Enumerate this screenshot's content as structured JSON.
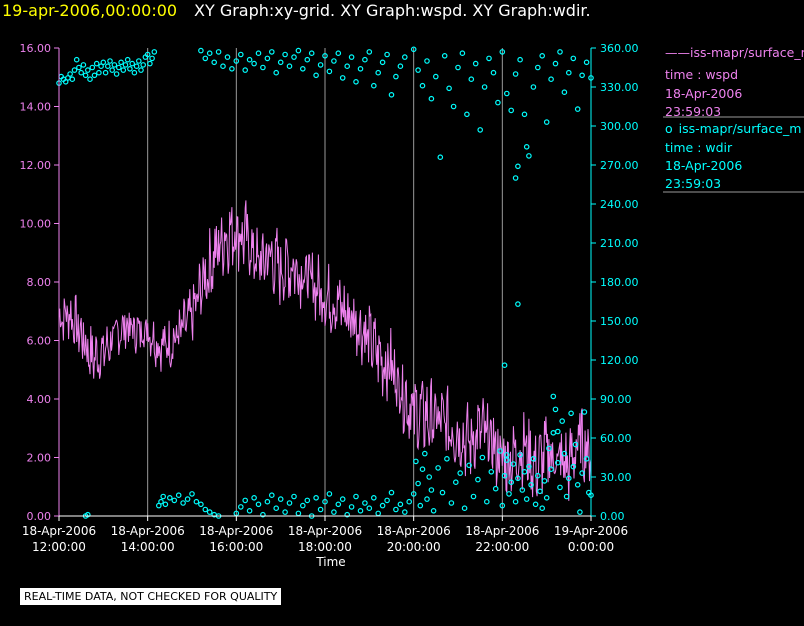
{
  "header": {
    "time": "19-apr-2006,00:00:00",
    "titles": "XY Graph:xy-grid.  XY Graph:wspd.  XY Graph:wdir."
  },
  "notice": "REAL-TIME DATA, NOT CHECKED FOR QUALITY",
  "legend": {
    "wspd": {
      "symbol": "——",
      "name": "iss-mapr/surface_m",
      "field": "time : wspd",
      "date": "18-Apr-2006",
      "time": "23:59:03"
    },
    "wdir": {
      "symbol": "o",
      "name": "iss-mapr/surface_m",
      "field": "time : wdir",
      "date": "18-Apr-2006",
      "time": "23:59:03"
    }
  },
  "colors": {
    "wspd": "#ee82ee",
    "wdir": "#00ffff",
    "grid": "#9a9a9a",
    "axis": "#ffffff",
    "title_time": "#ffff00"
  },
  "chart_data": {
    "type": "line",
    "xlabel": "Time",
    "x_tick_labels": [
      [
        "18-Apr-2006",
        "12:00:00"
      ],
      [
        "18-Apr-2006",
        "14:00:00"
      ],
      [
        "18-Apr-2006",
        "16:00:00"
      ],
      [
        "18-Apr-2006",
        "18:00:00"
      ],
      [
        "18-Apr-2006",
        "20:00:00"
      ],
      [
        "18-Apr-2006",
        "22:00:00"
      ],
      [
        "19-Apr-2006",
        "0:00:00"
      ]
    ],
    "x_tick_hours": [
      12,
      14,
      16,
      18,
      20,
      22,
      24
    ],
    "xlim_hours": [
      12,
      24
    ],
    "grid": true,
    "left_axis": {
      "ylim": [
        0,
        16
      ],
      "ticks": [
        "0.00",
        "2.00",
        "4.00",
        "6.00",
        "8.00",
        "10.00",
        "12.00",
        "14.00",
        "16.00"
      ]
    },
    "right_axis": {
      "ylim": [
        0,
        360
      ],
      "ticks": [
        "0.00",
        "30.00",
        "60.00",
        "90.00",
        "120.00",
        "150.00",
        "180.00",
        "210.00",
        "240.00",
        "270.00",
        "300.00",
        "330.00",
        "360.00"
      ]
    },
    "series": [
      {
        "key": "wspd",
        "axis": "left",
        "style": "line",
        "hours": [
          12.0,
          12.25,
          12.5,
          12.75,
          13.0,
          13.25,
          13.5,
          13.75,
          14.0,
          14.25,
          14.5,
          14.75,
          15.0,
          15.25,
          15.5,
          15.75,
          16.0,
          16.25,
          16.5,
          16.75,
          17.0,
          17.25,
          17.5,
          17.75,
          18.0,
          18.25,
          18.5,
          18.75,
          19.0,
          19.25,
          19.5,
          19.75,
          20.0,
          20.25,
          20.5,
          20.75,
          21.0,
          21.25,
          21.5,
          21.75,
          22.0,
          22.25,
          22.5,
          22.75,
          23.0,
          23.25,
          23.5,
          23.75,
          24.0
        ],
        "values": [
          6.8,
          6.9,
          6.2,
          5.4,
          5.6,
          6.1,
          6.5,
          6.3,
          6.4,
          5.8,
          5.9,
          6.3,
          6.8,
          8.0,
          8.9,
          9.6,
          9.8,
          9.4,
          8.6,
          8.9,
          8.4,
          8.6,
          8.3,
          7.9,
          7.5,
          7.3,
          6.9,
          6.6,
          6.0,
          5.4,
          5.1,
          4.3,
          3.5,
          3.4,
          3.3,
          3.1,
          2.9,
          2.5,
          2.9,
          2.5,
          1.9,
          2.0,
          2.4,
          1.6,
          2.2,
          1.9,
          1.7,
          2.6,
          2.1
        ],
        "amplitude": [
          0.7,
          0.7,
          0.8,
          0.8,
          0.7,
          0.6,
          0.6,
          0.6,
          0.6,
          0.6,
          0.7,
          0.7,
          0.8,
          0.9,
          1.0,
          1.0,
          1.0,
          1.0,
          1.0,
          1.0,
          1.0,
          1.0,
          0.9,
          0.9,
          0.9,
          0.9,
          0.9,
          0.9,
          0.9,
          1.0,
          1.0,
          1.0,
          1.1,
          1.1,
          1.0,
          1.0,
          1.0,
          1.0,
          1.0,
          1.0,
          1.0,
          1.0,
          1.0,
          1.0,
          1.0,
          1.0,
          1.0,
          1.0,
          0.8
        ]
      },
      {
        "key": "wdir",
        "axis": "right",
        "style": "scatter",
        "points": [
          [
            12.0,
            333
          ],
          [
            12.05,
            338
          ],
          [
            12.1,
            336
          ],
          [
            12.15,
            334
          ],
          [
            12.2,
            337
          ],
          [
            12.25,
            340
          ],
          [
            12.3,
            336
          ],
          [
            12.35,
            343
          ],
          [
            12.4,
            351
          ],
          [
            12.45,
            345
          ],
          [
            12.5,
            341
          ],
          [
            12.55,
            347
          ],
          [
            12.6,
            339
          ],
          [
            12.65,
            343
          ],
          [
            12.7,
            336
          ],
          [
            12.75,
            345
          ],
          [
            12.8,
            339
          ],
          [
            12.85,
            348
          ],
          [
            12.9,
            341
          ],
          [
            12.95,
            346
          ],
          [
            13.0,
            349
          ],
          [
            13.05,
            341
          ],
          [
            13.1,
            346
          ],
          [
            13.15,
            350
          ],
          [
            13.2,
            343
          ],
          [
            13.25,
            347
          ],
          [
            13.3,
            340
          ],
          [
            13.35,
            345
          ],
          [
            13.4,
            349
          ],
          [
            13.45,
            343
          ],
          [
            13.5,
            347
          ],
          [
            13.55,
            351
          ],
          [
            13.6,
            344
          ],
          [
            13.65,
            348
          ],
          [
            13.7,
            341
          ],
          [
            13.75,
            346
          ],
          [
            13.8,
            350
          ],
          [
            13.85,
            343
          ],
          [
            13.9,
            347
          ],
          [
            13.95,
            353
          ],
          [
            14.0,
            355
          ],
          [
            14.05,
            348
          ],
          [
            14.1,
            352
          ],
          [
            14.15,
            357
          ],
          [
            15.2,
            358
          ],
          [
            15.3,
            352
          ],
          [
            15.4,
            356
          ],
          [
            15.5,
            349
          ],
          [
            15.6,
            357
          ],
          [
            15.7,
            346
          ],
          [
            15.8,
            353
          ],
          [
            15.9,
            344
          ],
          [
            16.0,
            350
          ],
          [
            16.1,
            355
          ],
          [
            16.2,
            343
          ],
          [
            16.3,
            351
          ],
          [
            16.4,
            348
          ],
          [
            16.5,
            356
          ],
          [
            16.6,
            345
          ],
          [
            16.7,
            352
          ],
          [
            16.8,
            357
          ],
          [
            16.9,
            341
          ],
          [
            17.0,
            349
          ],
          [
            17.1,
            355
          ],
          [
            17.2,
            346
          ],
          [
            17.3,
            353
          ],
          [
            17.4,
            358
          ],
          [
            17.5,
            344
          ],
          [
            17.6,
            351
          ],
          [
            17.7,
            356
          ],
          [
            17.8,
            339
          ],
          [
            17.9,
            347
          ],
          [
            18.0,
            354
          ],
          [
            18.1,
            342
          ],
          [
            18.2,
            350
          ],
          [
            18.3,
            356
          ],
          [
            18.4,
            337
          ],
          [
            18.5,
            346
          ],
          [
            18.6,
            353
          ],
          [
            18.7,
            334
          ],
          [
            18.8,
            344
          ],
          [
            18.9,
            351
          ],
          [
            19.0,
            357
          ],
          [
            19.1,
            331
          ],
          [
            19.2,
            341
          ],
          [
            19.3,
            349
          ],
          [
            19.4,
            355
          ],
          [
            19.5,
            324
          ],
          [
            19.6,
            338
          ],
          [
            19.7,
            346
          ],
          [
            19.8,
            353
          ],
          [
            20.0,
            359
          ],
          [
            20.1,
            343
          ],
          [
            20.2,
            331
          ],
          [
            20.3,
            350
          ],
          [
            20.4,
            321
          ],
          [
            20.5,
            338
          ],
          [
            20.6,
            276
          ],
          [
            20.7,
            354
          ],
          [
            20.8,
            329
          ],
          [
            20.9,
            315
          ],
          [
            21.0,
            345
          ],
          [
            21.1,
            356
          ],
          [
            21.2,
            309
          ],
          [
            21.3,
            336
          ],
          [
            21.4,
            348
          ],
          [
            21.5,
            297
          ],
          [
            21.6,
            330
          ],
          [
            21.7,
            352
          ],
          [
            21.8,
            341
          ],
          [
            21.9,
            318
          ],
          [
            22.0,
            357
          ],
          [
            22.1,
            325
          ],
          [
            22.2,
            312
          ],
          [
            22.3,
            340
          ],
          [
            22.4,
            351
          ],
          [
            22.5,
            309
          ],
          [
            22.6,
            277
          ],
          [
            22.7,
            330
          ],
          [
            22.8,
            345
          ],
          [
            22.9,
            354
          ],
          [
            23.0,
            303
          ],
          [
            23.1,
            336
          ],
          [
            23.2,
            348
          ],
          [
            23.3,
            357
          ],
          [
            23.4,
            326
          ],
          [
            23.5,
            341
          ],
          [
            23.6,
            352
          ],
          [
            23.7,
            313
          ],
          [
            23.8,
            339
          ],
          [
            23.9,
            349
          ],
          [
            24.0,
            337
          ],
          [
            22.3,
            260
          ],
          [
            22.35,
            269
          ],
          [
            22.55,
            284
          ],
          [
            22.35,
            163
          ],
          [
            22.05,
            116
          ],
          [
            23.15,
            92
          ],
          [
            22.1,
            47
          ],
          [
            23.25,
            65
          ],
          [
            12.6,
            0
          ],
          [
            12.65,
            1
          ],
          [
            14.25,
            8
          ],
          [
            14.3,
            11
          ],
          [
            14.35,
            15
          ],
          [
            14.4,
            9
          ],
          [
            14.5,
            14
          ],
          [
            14.6,
            12
          ],
          [
            14.7,
            16
          ],
          [
            14.8,
            10
          ],
          [
            14.9,
            13
          ],
          [
            15.0,
            17
          ],
          [
            15.1,
            11
          ],
          [
            15.2,
            9
          ],
          [
            15.3,
            5
          ],
          [
            15.4,
            3
          ],
          [
            15.5,
            1
          ],
          [
            15.6,
            0
          ],
          [
            16.0,
            2
          ],
          [
            16.1,
            7
          ],
          [
            16.2,
            12
          ],
          [
            16.3,
            4
          ],
          [
            16.4,
            14
          ],
          [
            16.5,
            9
          ],
          [
            16.6,
            1
          ],
          [
            16.7,
            11
          ],
          [
            16.8,
            16
          ],
          [
            16.9,
            6
          ],
          [
            17.0,
            13
          ],
          [
            17.1,
            3
          ],
          [
            17.2,
            10
          ],
          [
            17.3,
            15
          ],
          [
            17.4,
            2
          ],
          [
            17.5,
            8
          ],
          [
            17.6,
            12
          ],
          [
            17.7,
            0
          ],
          [
            17.8,
            14
          ],
          [
            17.9,
            5
          ],
          [
            18.0,
            11
          ],
          [
            18.1,
            17
          ],
          [
            18.2,
            3
          ],
          [
            18.3,
            9
          ],
          [
            18.4,
            13
          ],
          [
            18.5,
            1
          ],
          [
            18.6,
            7
          ],
          [
            18.7,
            15
          ],
          [
            18.8,
            4
          ],
          [
            18.9,
            10
          ],
          [
            19.0,
            6
          ],
          [
            19.1,
            14
          ],
          [
            19.2,
            2
          ],
          [
            19.3,
            8
          ],
          [
            19.4,
            12
          ],
          [
            19.5,
            18
          ],
          [
            19.6,
            5
          ],
          [
            19.7,
            9
          ],
          [
            19.8,
            3
          ],
          [
            19.9,
            11
          ],
          [
            20.0,
            17
          ],
          [
            20.05,
            42
          ],
          [
            20.1,
            25
          ],
          [
            20.15,
            8
          ],
          [
            20.2,
            36
          ],
          [
            20.25,
            48
          ],
          [
            20.3,
            13
          ],
          [
            20.35,
            30
          ],
          [
            20.4,
            20
          ],
          [
            20.45,
            4
          ],
          [
            20.55,
            37
          ],
          [
            20.65,
            18
          ],
          [
            20.75,
            44
          ],
          [
            20.85,
            10
          ],
          [
            20.95,
            26
          ],
          [
            21.05,
            33
          ],
          [
            21.15,
            6
          ],
          [
            21.25,
            39
          ],
          [
            21.35,
            15
          ],
          [
            21.45,
            28
          ],
          [
            21.55,
            45
          ],
          [
            21.65,
            11
          ],
          [
            21.75,
            34
          ],
          [
            21.85,
            21
          ],
          [
            21.95,
            50
          ],
          [
            22.0,
            8
          ],
          [
            22.05,
            31
          ],
          [
            22.1,
            43
          ],
          [
            22.15,
            17
          ],
          [
            22.2,
            26
          ],
          [
            22.25,
            40
          ],
          [
            22.3,
            11
          ],
          [
            22.35,
            29
          ],
          [
            22.4,
            47
          ],
          [
            22.45,
            20
          ],
          [
            22.5,
            34
          ],
          [
            22.55,
            13
          ],
          [
            22.6,
            38
          ],
          [
            22.65,
            24
          ],
          [
            22.7,
            44
          ],
          [
            22.75,
            9
          ],
          [
            22.8,
            31
          ],
          [
            22.85,
            19
          ],
          [
            22.9,
            6
          ],
          [
            22.95,
            27
          ],
          [
            23.0,
            14
          ],
          [
            23.05,
            52
          ],
          [
            23.1,
            36
          ],
          [
            23.15,
            64
          ],
          [
            23.2,
            82
          ],
          [
            23.25,
            41
          ],
          [
            23.3,
            22
          ],
          [
            23.35,
            73
          ],
          [
            23.4,
            48
          ],
          [
            23.45,
            15
          ],
          [
            23.5,
            29
          ],
          [
            23.55,
            79
          ],
          [
            23.6,
            38
          ],
          [
            23.65,
            55
          ],
          [
            23.7,
            24
          ],
          [
            23.75,
            3
          ],
          [
            23.8,
            33
          ],
          [
            23.85,
            80
          ],
          [
            23.9,
            44
          ],
          [
            23.95,
            18
          ],
          [
            24.0,
            16
          ]
        ]
      }
    ]
  }
}
